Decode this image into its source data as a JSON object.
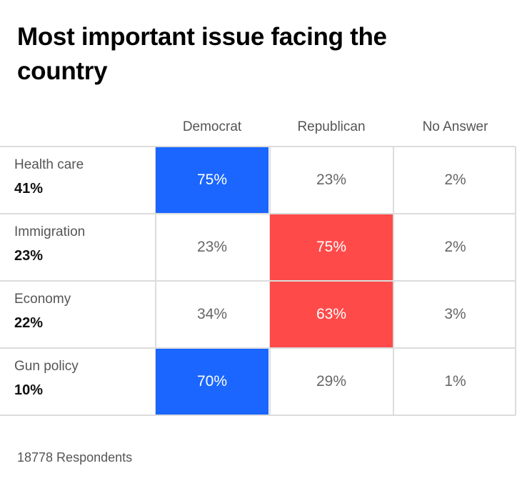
{
  "title": "Most important issue facing the country",
  "footer": "18778 Respondents",
  "colors": {
    "democrat": "#1a66ff",
    "republican": "#ff4a4a"
  },
  "chart_data": {
    "type": "table",
    "title": "Most important issue facing the country",
    "columns": [
      "Democrat",
      "Republican",
      "No Answer"
    ],
    "rows": [
      {
        "label": "Health care",
        "share": "41%",
        "values": [
          "75%",
          "23%",
          "2%"
        ],
        "highlight": "Democrat"
      },
      {
        "label": "Immigration",
        "share": "23%",
        "values": [
          "23%",
          "75%",
          "2%"
        ],
        "highlight": "Republican"
      },
      {
        "label": "Economy",
        "share": "22%",
        "values": [
          "34%",
          "63%",
          "3%"
        ],
        "highlight": "Republican"
      },
      {
        "label": "Gun policy",
        "share": "10%",
        "values": [
          "70%",
          "29%",
          "1%"
        ],
        "highlight": "Democrat"
      }
    ]
  }
}
